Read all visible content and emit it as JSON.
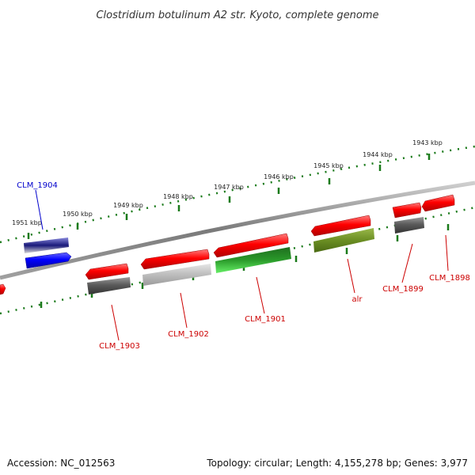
{
  "title": "Clostridium botulinum A2 str. Kyoto, complete genome",
  "footer": {
    "accession": "Accession: NC_012563",
    "summary": "Topology: circular; Length: 4,155,278 bp; Genes: 3,977"
  },
  "scale_labels": [
    "1951 kbp",
    "1950 kbp",
    "1949 kbp",
    "1948 kbp",
    "1947 kbp",
    "1946 kbp",
    "1945 kbp",
    "1944 kbp",
    "1943 kbp"
  ],
  "genes": [
    {
      "label": "CLM_1904",
      "color": "#0000cc",
      "strand": "reverse"
    },
    {
      "label": "CLM_1903",
      "color": "#cc0000",
      "strand": "forward"
    },
    {
      "label": "CLM_1902",
      "color": "#cc0000",
      "strand": "forward"
    },
    {
      "label": "CLM_1901",
      "color": "#cc0000",
      "strand": "forward"
    },
    {
      "label": "alr",
      "color": "#cc0000",
      "strand": "forward"
    },
    {
      "label": "CLM_1899",
      "color": "#cc0000",
      "strand": "forward"
    },
    {
      "label": "CLM_1898",
      "color": "#cc0000",
      "strand": "forward"
    }
  ],
  "colors": {
    "forward_gene": "#ff0000",
    "reverse_gene": "#0000ff",
    "scale_dots": "#1a7a1a",
    "backbone": "#888888",
    "track_dark_gray": "#555555",
    "track_light_gray": "#c0c0c0",
    "track_green": "#22aa22",
    "track_olive": "#6b8e23",
    "track_navy": "#1a1a7a"
  }
}
